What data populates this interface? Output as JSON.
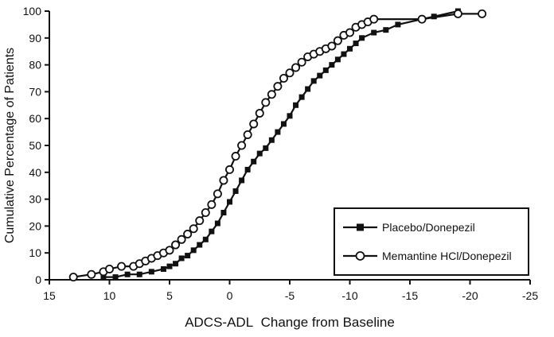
{
  "figure": {
    "background": "#ffffff",
    "line_color": "#111111"
  },
  "chart_data": {
    "type": "line",
    "title": "",
    "xlabel": "ADCS-ADL  Change from Baseline",
    "ylabel": "Cumulative Percentage of Patients",
    "x_axis_reversed": true,
    "xlim": [
      15,
      -25
    ],
    "ylim": [
      0,
      100
    ],
    "xticks": [
      15,
      10,
      5,
      0,
      -5,
      -10,
      -15,
      -20,
      -25
    ],
    "yticks": [
      0,
      10,
      20,
      30,
      40,
      50,
      60,
      70,
      80,
      90,
      100
    ],
    "grid": false,
    "legend_position": "lower right",
    "series": [
      {
        "name": "Placebo/Donepezil",
        "marker": "filled-square",
        "color": "#111111",
        "x": [
          10.5,
          9.5,
          8.5,
          7.5,
          6.5,
          5.5,
          5,
          4.5,
          4,
          3.5,
          3,
          2.5,
          2,
          1.5,
          1,
          0.5,
          0,
          -0.5,
          -1,
          -1.5,
          -2,
          -2.5,
          -3,
          -3.5,
          -4,
          -4.5,
          -5,
          -5.5,
          -6,
          -6.5,
          -7,
          -7.5,
          -8,
          -8.5,
          -9,
          -9.5,
          -10,
          -10.5,
          -11,
          -12,
          -13,
          -14,
          -16,
          -17,
          -19
        ],
        "y": [
          1,
          1,
          2,
          2,
          3,
          4,
          5,
          6,
          8,
          9,
          11,
          13,
          15,
          18,
          21,
          25,
          29,
          33,
          37,
          41,
          44,
          47,
          49,
          52,
          55,
          58,
          61,
          65,
          68,
          71,
          74,
          76,
          78,
          80,
          82,
          84,
          86,
          88,
          90,
          92,
          93,
          95,
          97,
          98,
          100
        ]
      },
      {
        "name": "Memantine HCl/Donepezil",
        "marker": "open-circle",
        "color": "#111111",
        "x": [
          13,
          11.5,
          10.5,
          10,
          9,
          8,
          7.5,
          7,
          6.5,
          6,
          5.5,
          5,
          4.5,
          4,
          3.5,
          3,
          2.5,
          2,
          1.5,
          1,
          0.5,
          0,
          -0.5,
          -1,
          -1.5,
          -2,
          -2.5,
          -3,
          -3.5,
          -4,
          -4.5,
          -5,
          -5.5,
          -6,
          -6.5,
          -7,
          -7.5,
          -8,
          -8.5,
          -9,
          -9.5,
          -10,
          -10.5,
          -11,
          -11.5,
          -12,
          -16,
          -19,
          -21
        ],
        "y": [
          1,
          2,
          3,
          4,
          5,
          5,
          6,
          7,
          8,
          9,
          10,
          11,
          13,
          15,
          17,
          19,
          22,
          25,
          28,
          32,
          37,
          41,
          46,
          50,
          54,
          58,
          62,
          66,
          69,
          72,
          75,
          77,
          79,
          81,
          83,
          84,
          85,
          86,
          87,
          89,
          91,
          92,
          94,
          95,
          96,
          97,
          97,
          99,
          99
        ]
      }
    ]
  }
}
